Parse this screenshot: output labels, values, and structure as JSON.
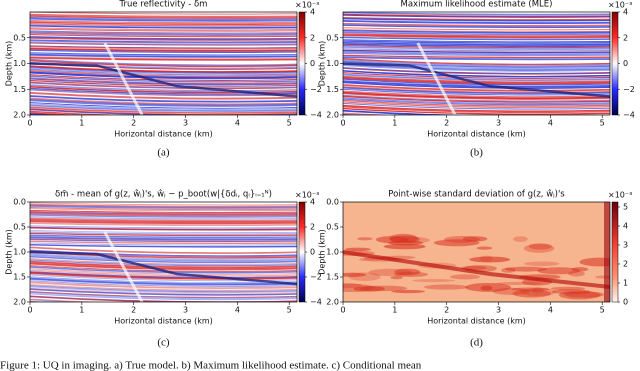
{
  "panels": [
    {
      "title": "True reflectivity - δm",
      "y_label": "Depth (km)",
      "x_label": "Horizontal distance (km)",
      "x_ticks": [
        "0",
        "1",
        "2",
        "3",
        "4",
        "5"
      ],
      "y_ticks": [
        "0.5",
        "1.0",
        "1.5",
        "2.0"
      ],
      "colorbar_ticks": [
        "4",
        "2",
        "0",
        "−2",
        "−4"
      ],
      "colorbar_scale": "×10⁻³",
      "caption": "(a)"
    },
    {
      "title": "Maximum likelihood estimate (MLE)",
      "y_label": "Depth (km)",
      "x_label": "Horizontal distance (km)",
      "x_ticks": [
        "0",
        "1",
        "2",
        "3",
        "4",
        "5"
      ],
      "y_ticks": [
        "0.5",
        "1.0",
        "1.5",
        "2.0"
      ],
      "colorbar_ticks": [
        "4",
        "2",
        "0",
        "−2",
        "−4"
      ],
      "colorbar_scale": "×10⁻³",
      "caption": "(b)"
    },
    {
      "title": "δm̄ - mean of g(z, ŵⱼ)'s,  ŵⱼ ~ p_boot(w|{δdᵢ, qᵢ}ᵢ₌₁ᴺ)",
      "y_label": "Depth (km)",
      "x_label": "Horizontal distance (km)",
      "x_ticks": [
        "0",
        "1",
        "2",
        "3",
        "4",
        "5"
      ],
      "y_ticks": [
        "0.0",
        "0.5",
        "1.0",
        "1.5",
        "2.0"
      ],
      "colorbar_ticks": [
        "4",
        "2",
        "0",
        "−2",
        "−4"
      ],
      "colorbar_scale": "×10⁻³",
      "caption": "(c)"
    },
    {
      "title": "Point-wise standard deviation of g(z, ŵⱼ)'s",
      "y_label": "Depth (km)",
      "x_label": "Horizontal distance (km)",
      "x_ticks": [
        "0",
        "1",
        "2",
        "3",
        "4",
        "5"
      ],
      "y_ticks": [
        "0.0",
        "0.5",
        "1.0",
        "1.5",
        "2.0"
      ],
      "colorbar_ticks": [
        "5",
        "4",
        "3",
        "2",
        "1",
        "0"
      ],
      "colorbar_scale": "×10⁻³",
      "caption": "(d)"
    }
  ],
  "figure_caption": "Figure 1: UQ in imaging. a) True model. b) Maximum likelihood estimate. c) Conditional mean"
}
